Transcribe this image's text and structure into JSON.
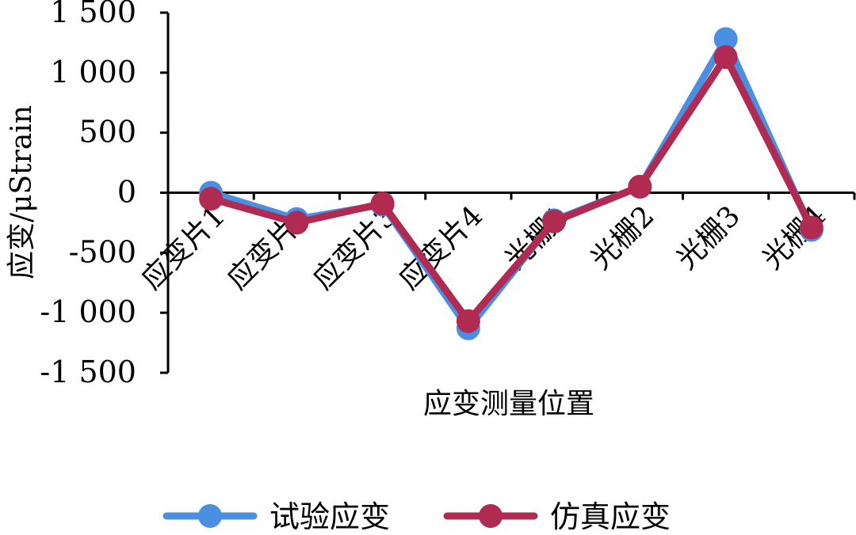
{
  "chart_data": {
    "type": "line",
    "categories": [
      "应变片1",
      "应变片2",
      "应变片3",
      "应变片4",
      "光栅1",
      "光栅2",
      "光栅3",
      "光栅4"
    ],
    "series": [
      {
        "name": "试验应变",
        "color": "#4a8fe2",
        "values": [
          0,
          -220,
          -100,
          -1130,
          -230,
          50,
          1280,
          -310
        ]
      },
      {
        "name": "仿真应变",
        "color": "#b02a52",
        "values": [
          -50,
          -250,
          -90,
          -1070,
          -240,
          50,
          1130,
          -290
        ]
      }
    ],
    "ylim": [
      -1500,
      1500
    ],
    "yticks": [
      1500,
      1000,
      500,
      0,
      -500,
      -1000,
      -1500
    ],
    "ytick_labels": [
      "1 500",
      "1 000",
      "500",
      "0",
      "-500",
      "-1 000",
      "-1 500"
    ],
    "xlabel": "应变测量位置",
    "ylabel": "应变/μStrain",
    "title": "",
    "grid": false,
    "legend_position": "bottom"
  }
}
